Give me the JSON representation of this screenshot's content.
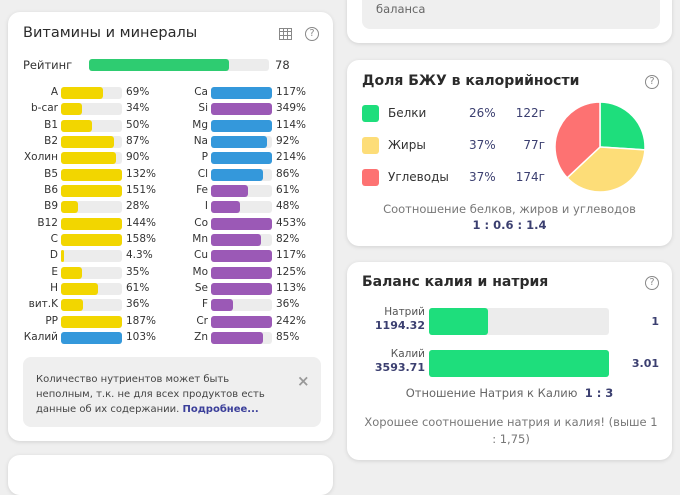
{
  "top_card": {
    "text": "баланса"
  },
  "vitamins": {
    "title": "Витамины и минералы",
    "rating_label": "Рейтинг",
    "rating_value": "78",
    "rating_fraction": 0.78,
    "colors": {
      "yellow": "#f2d600",
      "blue": "#3498db",
      "purple": "#9b59b6",
      "green": "#2ecc71"
    },
    "left": [
      {
        "label": "A",
        "pct": "69%",
        "v": 69,
        "c": "yellow"
      },
      {
        "label": "b-car",
        "pct": "34%",
        "v": 34,
        "c": "yellow"
      },
      {
        "label": "B1",
        "pct": "50%",
        "v": 50,
        "c": "yellow"
      },
      {
        "label": "B2",
        "pct": "87%",
        "v": 87,
        "c": "yellow"
      },
      {
        "label": "Холин",
        "pct": "90%",
        "v": 90,
        "c": "yellow"
      },
      {
        "label": "B5",
        "pct": "132%",
        "v": 132,
        "c": "yellow"
      },
      {
        "label": "B6",
        "pct": "151%",
        "v": 151,
        "c": "yellow"
      },
      {
        "label": "B9",
        "pct": "28%",
        "v": 28,
        "c": "yellow"
      },
      {
        "label": "B12",
        "pct": "144%",
        "v": 144,
        "c": "yellow"
      },
      {
        "label": "C",
        "pct": "158%",
        "v": 158,
        "c": "yellow"
      },
      {
        "label": "D",
        "pct": "4.3%",
        "v": 4.3,
        "c": "yellow"
      },
      {
        "label": "E",
        "pct": "35%",
        "v": 35,
        "c": "yellow"
      },
      {
        "label": "H",
        "pct": "61%",
        "v": 61,
        "c": "yellow"
      },
      {
        "label": "вит.K",
        "pct": "36%",
        "v": 36,
        "c": "yellow"
      },
      {
        "label": "PP",
        "pct": "187%",
        "v": 187,
        "c": "yellow"
      },
      {
        "label": "Калий",
        "pct": "103%",
        "v": 103,
        "c": "blue"
      }
    ],
    "right": [
      {
        "label": "Ca",
        "pct": "117%",
        "v": 117,
        "c": "blue"
      },
      {
        "label": "Si",
        "pct": "349%",
        "v": 349,
        "c": "purple"
      },
      {
        "label": "Mg",
        "pct": "114%",
        "v": 114,
        "c": "blue"
      },
      {
        "label": "Na",
        "pct": "92%",
        "v": 92,
        "c": "blue"
      },
      {
        "label": "P",
        "pct": "214%",
        "v": 214,
        "c": "blue"
      },
      {
        "label": "Cl",
        "pct": "86%",
        "v": 86,
        "c": "blue"
      },
      {
        "label": "Fe",
        "pct": "61%",
        "v": 61,
        "c": "purple"
      },
      {
        "label": "I",
        "pct": "48%",
        "v": 48,
        "c": "purple"
      },
      {
        "label": "Co",
        "pct": "453%",
        "v": 453,
        "c": "purple"
      },
      {
        "label": "Mn",
        "pct": "82%",
        "v": 82,
        "c": "purple"
      },
      {
        "label": "Cu",
        "pct": "117%",
        "v": 117,
        "c": "purple"
      },
      {
        "label": "Mo",
        "pct": "125%",
        "v": 125,
        "c": "purple"
      },
      {
        "label": "Se",
        "pct": "113%",
        "v": 113,
        "c": "purple"
      },
      {
        "label": "F",
        "pct": "36%",
        "v": 36,
        "c": "purple"
      },
      {
        "label": "Cr",
        "pct": "242%",
        "v": 242,
        "c": "purple"
      },
      {
        "label": "Zn",
        "pct": "85%",
        "v": 85,
        "c": "purple"
      }
    ],
    "note": "Количество нутриентов может быть неполным, т.к. не для всех продуктов есть данные об их содержании.",
    "note_link": "Подробнее...",
    "close": "×"
  },
  "bju": {
    "title": "Доля БЖУ в калорийности",
    "items": [
      {
        "name": "Белки",
        "pct": "26%",
        "grams": "122г",
        "share": 26,
        "color": "#1ede7c"
      },
      {
        "name": "Жиры",
        "pct": "37%",
        "grams": "77г",
        "share": 37,
        "color": "#fddd78"
      },
      {
        "name": "Углеводы",
        "pct": "37%",
        "grams": "174г",
        "share": 37,
        "color": "#fd7272"
      }
    ],
    "ratio_label": "Соотношение белков, жиров и углеводов",
    "ratio_value": "1 : 0.6 : 1.4"
  },
  "balance": {
    "title": "Баланс калия и натрия",
    "rows": [
      {
        "name": "Натрий",
        "amount": "1194.32",
        "ratio": "1",
        "fraction": 0.33
      },
      {
        "name": "Калий",
        "amount": "3593.71",
        "ratio": "3.01",
        "fraction": 1
      }
    ],
    "relation_label": "Отношение Натрия к Калию",
    "relation_value": "1 : 3",
    "message": "Хорошее соотношение натрия и калия! (выше 1 : 1,75)"
  },
  "help": "?"
}
